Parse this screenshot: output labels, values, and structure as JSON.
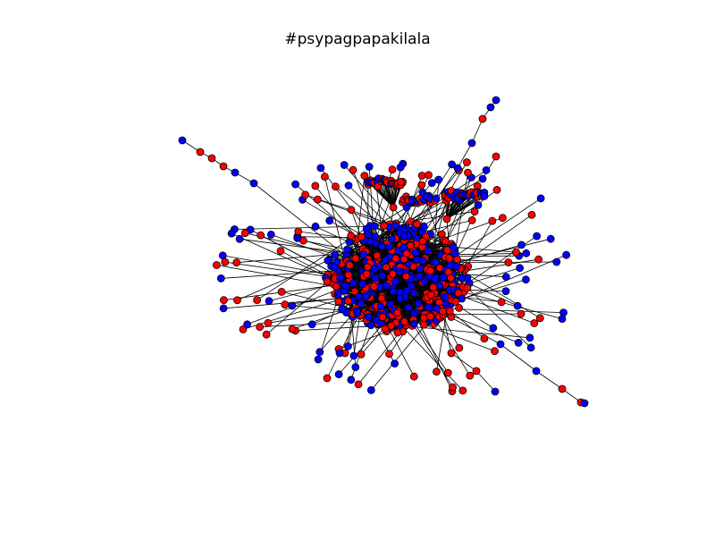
{
  "title": "#psypagpapakilala",
  "colors": {
    "node_red": "#ff0000",
    "node_blue": "#0000ff",
    "edge": "#000000",
    "node_outline": "#000000",
    "background": "#ffffff"
  }
}
